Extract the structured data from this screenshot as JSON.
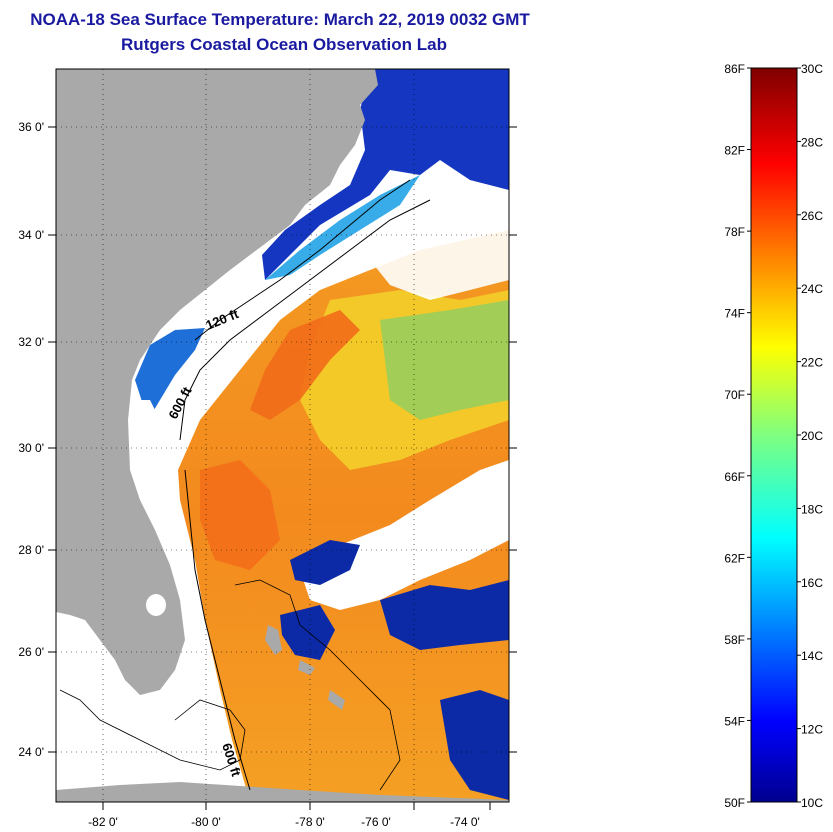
{
  "title": {
    "line1": "NOAA-18 Sea Surface Temperature:  March 22, 2019 0032 GMT",
    "line2": "Rutgers Coastal Ocean Observation Lab"
  },
  "map": {
    "lon_labels": [
      "-82 0'",
      "-80 0'",
      "-78 0'",
      "-76 0'",
      "-74 0'"
    ],
    "lat_labels": [
      "36 0'",
      "34 0'",
      "32 0'",
      "30 0'",
      "28 0'",
      "26 0'",
      "24 0'"
    ],
    "contour_labels": [
      "120 ft",
      "600 ft",
      "600 ft"
    ],
    "colors": {
      "land": "#a9a9a9",
      "water_nodata": "#ffffff",
      "cold": "#0a2ab0",
      "mid": "#19a6e8",
      "warm": "#f4a020",
      "hot": "#f06a18"
    }
  },
  "colorbar": {
    "fahrenheit_labels": [
      "86F",
      "82F",
      "78F",
      "74F",
      "70F",
      "66F",
      "62F",
      "58F",
      "54F",
      "50F"
    ],
    "celsius_labels": [
      "30C",
      "28C",
      "26C",
      "24C",
      "22C",
      "20C",
      "18C",
      "16C",
      "14C",
      "12C",
      "10C"
    ]
  }
}
